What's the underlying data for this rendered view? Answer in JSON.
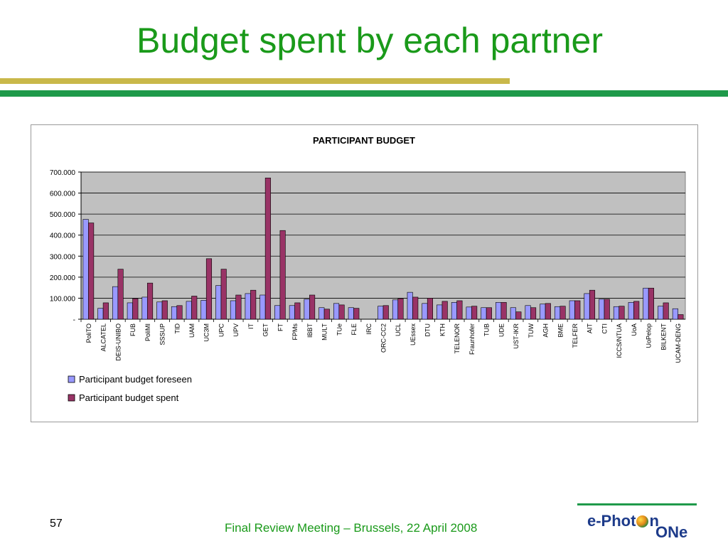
{
  "slide": {
    "title": "Budget spent by each partner",
    "page_number": "57",
    "footer": "Final Review Meeting – Brussels, 22 April 2008",
    "logo_text_1": "e-Phot",
    "logo_text_1b": "n",
    "logo_text_2": "ONe"
  },
  "colors": {
    "title_green": "#1a9a1a",
    "olive_bar": "#c9b84a",
    "green_bar": "#1f9a4a",
    "plot_bg": "#c0c0c0",
    "foreseen": "#9999ff",
    "spent": "#993366",
    "logo_blue": "#1d3b8a"
  },
  "chart_data": {
    "type": "bar",
    "title": "PARTICIPANT BUDGET",
    "xlabel": "",
    "ylabel": "",
    "ylim": [
      0,
      700000
    ],
    "yticks": [
      {
        "value": 0,
        "label": "-"
      },
      {
        "value": 100000,
        "label": "100.000"
      },
      {
        "value": 200000,
        "label": "200.000"
      },
      {
        "value": 300000,
        "label": "300.000"
      },
      {
        "value": 400000,
        "label": "400.000"
      },
      {
        "value": 500000,
        "label": "500.000"
      },
      {
        "value": 600000,
        "label": "600.000"
      },
      {
        "value": 700000,
        "label": "700.000"
      }
    ],
    "grid": true,
    "legend_position": "bottom-left",
    "categories": [
      "PoliTO",
      "ALCATEL",
      "DEIS-UNIBO",
      "FUB",
      "PoliMI",
      "SSSUP",
      "TID",
      "UAM",
      "UC3M",
      "UPC",
      "UPV",
      "IT",
      "GET",
      "FT",
      "FPMs",
      "IBBT",
      "MULT",
      "TUe",
      "FLE",
      "IRC",
      "ORC-CC2",
      "UCL",
      "UEssex",
      "DTU",
      "KTH",
      "TELENOR",
      "Fraunhofer",
      "TUB",
      "UDE",
      "UST-IKR",
      "TUW",
      "AGH",
      "BME",
      "TELFER",
      "AIT",
      "CTI",
      "ICCS/NTUA",
      "UoA",
      "UoPelop",
      "BILKENT",
      "UCAM-DENG"
    ],
    "series": [
      {
        "name": "Participant budget foreseen",
        "color": "#9999ff",
        "values": [
          475000,
          52000,
          155000,
          78000,
          105000,
          82000,
          60000,
          85000,
          90000,
          160000,
          88000,
          122000,
          115000,
          65000,
          65000,
          95000,
          55000,
          75000,
          55000,
          0,
          62000,
          92000,
          128000,
          75000,
          68000,
          80000,
          58000,
          55000,
          80000,
          55000,
          65000,
          72000,
          60000,
          88000,
          122000,
          95000,
          60000,
          80000,
          148000,
          62000,
          50000
        ]
      },
      {
        "name": "Participant budget spent",
        "color": "#993366",
        "values": [
          458000,
          78000,
          238000,
          98000,
          172000,
          88000,
          65000,
          110000,
          288000,
          238000,
          115000,
          138000,
          672000,
          422000,
          78000,
          115000,
          48000,
          68000,
          52000,
          0,
          65000,
          98000,
          105000,
          100000,
          85000,
          88000,
          62000,
          55000,
          80000,
          35000,
          55000,
          75000,
          62000,
          88000,
          138000,
          95000,
          62000,
          85000,
          148000,
          78000,
          22000
        ]
      }
    ]
  }
}
